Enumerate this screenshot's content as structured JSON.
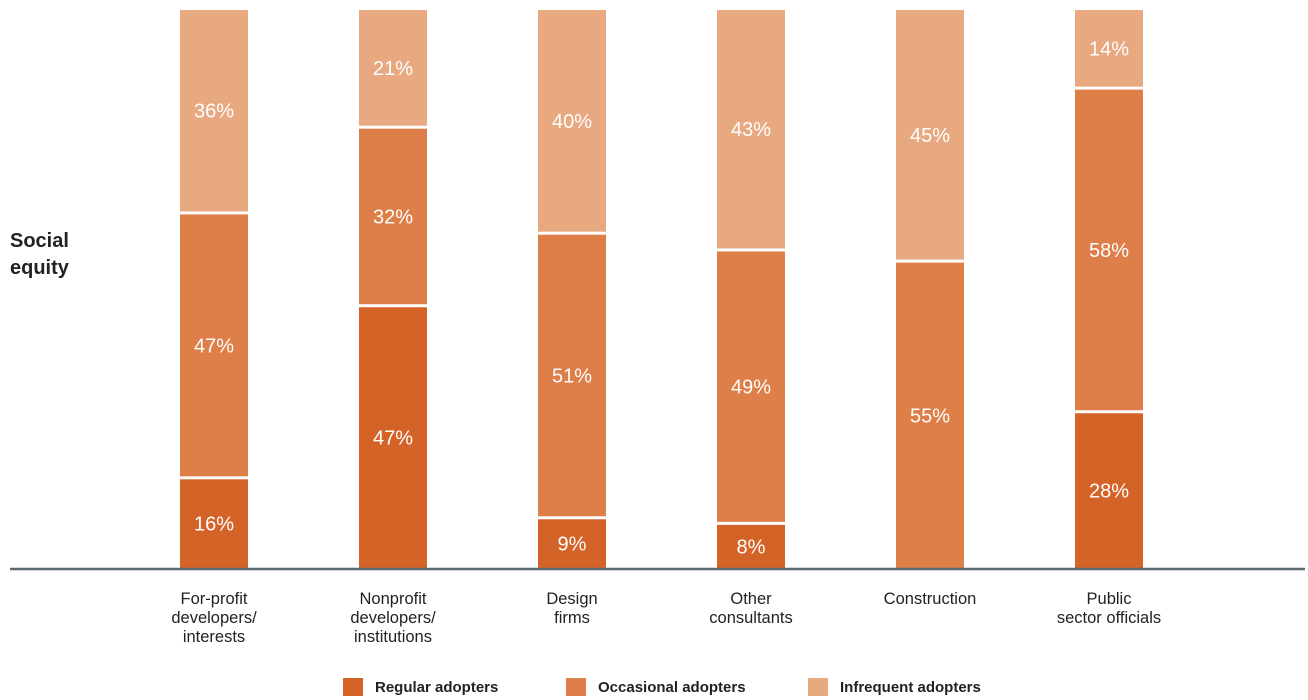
{
  "side_label": {
    "line1": "Social",
    "line2": "equity"
  },
  "colors": {
    "regular": "#d46327",
    "occasional": "#de7e48",
    "infrequent": "#e8a880",
    "axis": "#5a6870"
  },
  "chart_data": {
    "type": "bar",
    "stacked": true,
    "orientation": "vertical",
    "row_label": "Social equity",
    "categories": [
      [
        "For-profit",
        "developers/",
        "interests"
      ],
      [
        "Nonprofit",
        "developers/",
        "institutions"
      ],
      [
        "Design",
        "firms"
      ],
      [
        "Other",
        "consultants"
      ],
      [
        "Construction"
      ],
      [
        "Public",
        "sector officials"
      ]
    ],
    "series": [
      {
        "name": "Regular adopters",
        "values": [
          16,
          47,
          9,
          8,
          0,
          28
        ]
      },
      {
        "name": "Occasional adopters",
        "values": [
          47,
          32,
          51,
          49,
          55,
          58
        ]
      },
      {
        "name": "Infrequent adopters",
        "values": [
          36,
          21,
          40,
          43,
          45,
          14
        ]
      }
    ],
    "value_format": "{v}%",
    "legend_position": "bottom",
    "grid": false
  }
}
